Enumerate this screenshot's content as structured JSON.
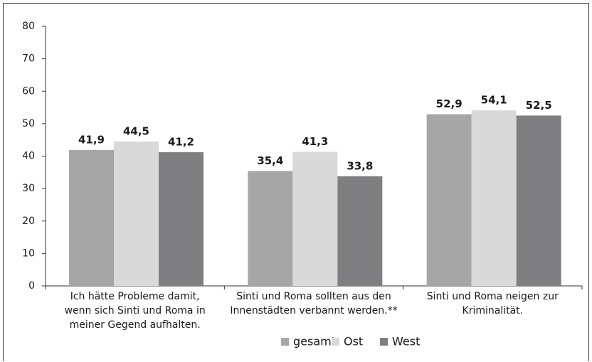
{
  "chart_data": {
    "type": "bar",
    "categories": [
      "Ich hätte Probleme damit,\nwenn sich Sinti und Roma in\nmeiner Gegend aufhalten.",
      "Sinti und Roma sollten aus den\nInnenstädten verbannt werden.**",
      "Sinti und Roma neigen zur\nKriminalität."
    ],
    "series": [
      {
        "name": "gesamt",
        "color": "#a6a6a7",
        "values": [
          41.9,
          35.4,
          52.9
        ],
        "value_labels": [
          "41,9",
          "35,4",
          "52,9"
        ]
      },
      {
        "name": "Ost",
        "color": "#d9d9d9",
        "values": [
          44.5,
          41.3,
          54.1
        ],
        "value_labels": [
          "44,5",
          "41,3",
          "54,1"
        ]
      },
      {
        "name": "West",
        "color": "#7f7f82",
        "values": [
          41.2,
          33.8,
          52.5
        ],
        "value_labels": [
          "41,2",
          "33,8",
          "52,5"
        ]
      }
    ],
    "ylim": [
      0,
      80
    ],
    "yticks": [
      0,
      10,
      20,
      30,
      40,
      50,
      60,
      70,
      80
    ],
    "legend": "bottom"
  }
}
